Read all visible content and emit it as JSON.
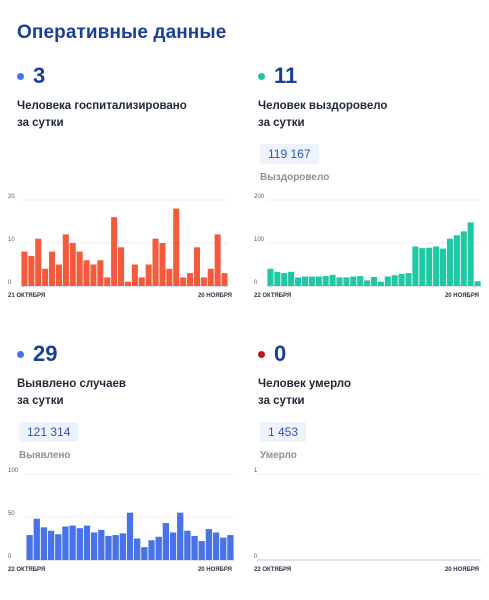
{
  "page": {
    "title": "Оперативные данные"
  },
  "panels": [
    {
      "dot_color": "#4773e6",
      "number": "3",
      "caption_line1": "Человека госпитализировано",
      "caption_line2": "за сутки"
    },
    {
      "dot_color": "#1fc7a3",
      "number": "11",
      "caption_line1": "Человек выздоровело",
      "caption_line2": "за сутки",
      "total": "119 167",
      "total_label": "Выздоровело"
    },
    {
      "dot_color": "#4773e6",
      "number": "29",
      "caption_line1": "Выявлено случаев",
      "caption_line2": "за сутки",
      "total": "121 314",
      "total_label": "Выявлено"
    },
    {
      "dot_color": "#c0171f",
      "number": "0",
      "caption_line1": "Человек умерло",
      "caption_line2": "за сутки",
      "total": "1 453",
      "total_label": "Умерло"
    }
  ],
  "chart_data": [
    {
      "type": "bar",
      "color": "#f45b3c",
      "ylim": [
        0,
        20
      ],
      "yticks": [
        0,
        10,
        20
      ],
      "x_start_label": "21 ОКТЯБРЯ",
      "x_end_label": "20 НОЯБРЯ",
      "values": [
        8,
        7,
        11,
        4,
        8,
        5,
        12,
        10,
        8,
        6,
        5,
        6,
        2,
        16,
        9,
        1,
        5,
        2,
        5,
        11,
        10,
        4,
        18,
        2,
        3,
        9,
        2,
        4,
        12,
        3
      ],
      "grid": true
    },
    {
      "type": "bar",
      "color": "#1fc7a3",
      "ylim": [
        0,
        200
      ],
      "yticks": [
        0,
        100,
        200
      ],
      "x_start_label": "22 ОКТЯБРЯ",
      "x_end_label": "20 НОЯБРЯ",
      "values": [
        40,
        33,
        30,
        33,
        20,
        22,
        22,
        22,
        23,
        26,
        20,
        20,
        22,
        23,
        13,
        21,
        10,
        22,
        25,
        28,
        30,
        92,
        88,
        89,
        92,
        87,
        110,
        118,
        127,
        148,
        11
      ],
      "grid": true
    },
    {
      "type": "bar",
      "color": "#4773e6",
      "ylim": [
        0,
        100
      ],
      "yticks": [
        0,
        50,
        100
      ],
      "x_start_label": "22 ОКТЯБРЯ",
      "x_end_label": "20 НОЯБРЯ",
      "values": [
        29,
        48,
        38,
        34,
        30,
        39,
        40,
        37,
        40,
        32,
        35,
        28,
        29,
        31,
        55,
        25,
        15,
        23,
        27,
        43,
        32,
        55,
        34,
        28,
        22,
        36,
        32,
        26,
        29
      ],
      "grid": true
    },
    {
      "type": "bar",
      "color": "#1a3f96",
      "ylim": [
        0,
        1
      ],
      "yticks": [
        0,
        1
      ],
      "x_start_label": "22 ОКТЯБРЯ",
      "x_end_label": "20 НОЯБРЯ",
      "values": [],
      "grid": true
    }
  ]
}
